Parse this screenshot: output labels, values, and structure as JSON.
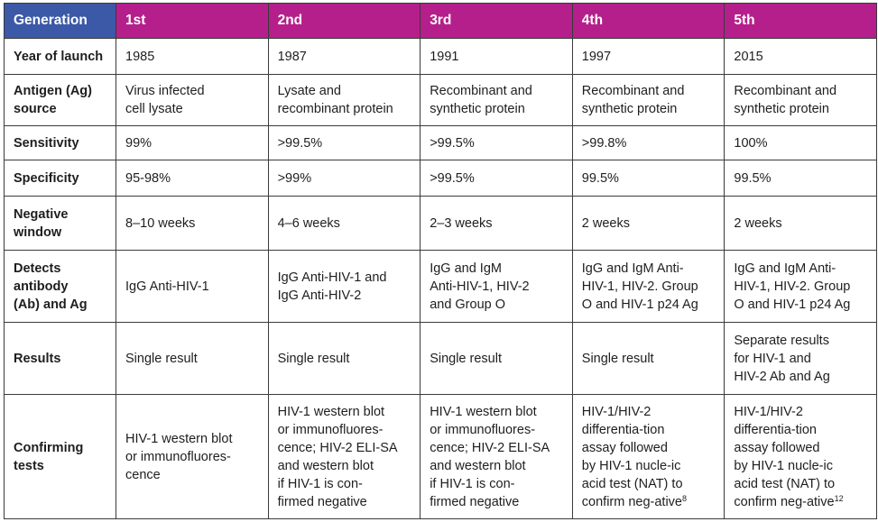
{
  "colors": {
    "header_first": "#3c59a7",
    "header_generation": "#b51f8b",
    "border": "#3a3a3a"
  },
  "header": {
    "label": "Generation",
    "generations": [
      "1st",
      "2nd",
      "3rd",
      "4th",
      "5th"
    ]
  },
  "rows": [
    {
      "label": "Year of launch",
      "cells": [
        "1985",
        "1987",
        "1991",
        "1997",
        "2015"
      ]
    },
    {
      "label": "Antigen (Ag)\nsource",
      "cells": [
        "Virus infected\ncell lysate",
        "Lysate and\nrecombinant protein",
        "Recombinant and\nsynthetic protein",
        "Recombinant and\nsynthetic protein",
        "Recombinant and\nsynthetic protein"
      ]
    },
    {
      "label": "Sensitivity",
      "cells": [
        "99%",
        ">99.5%",
        ">99.5%",
        ">99.8%",
        "100%"
      ]
    },
    {
      "label": "Specificity",
      "cells": [
        "95-98%",
        ">99%",
        ">99.5%",
        "99.5%",
        "99.5%"
      ]
    },
    {
      "label": "Negative\nwindow",
      "cells": [
        "8–10 weeks",
        "4–6 weeks",
        "2–3 weeks",
        "2 weeks",
        "2 weeks"
      ]
    },
    {
      "label": "Detects\nantibody\n(Ab) and Ag",
      "cells": [
        "IgG Anti-HIV-1",
        "IgG Anti-HIV-1 and\nIgG Anti-HIV-2",
        "IgG and IgM\nAnti-HIV-1, HIV-2\nand Group O",
        "IgG and IgM Anti-\nHIV-1, HIV-2. Group\nO and HIV-1 p24 Ag",
        "IgG and IgM Anti-\nHIV-1, HIV-2. Group\nO and HIV-1 p24 Ag"
      ]
    },
    {
      "label": "Results",
      "cells": [
        "Single result",
        "Single result",
        "Single result",
        "Single result",
        "Separate results\nfor HIV-1 and\nHIV-2 Ab and Ag"
      ]
    },
    {
      "label": "Confirming\ntests",
      "cells": [
        "HIV-1 western blot\nor immunofluores-\ncence",
        "HIV-1 western blot\nor immunofluores-\ncence; HIV-2 ELI-SA\nand western blot\nif HIV-1 is con-\nfirmed negative",
        "HIV-1 western blot\nor immunofluores-\ncence; HIV-2 ELI-SA\nand western blot\nif HIV-1 is con-\nfirmed negative",
        "HIV-1/HIV-2\ndifferentia-tion\nassay followed\nby HIV-1 nucle-ic\nacid test (NAT) to\nconfirm neg-ative",
        "HIV-1/HIV-2\ndifferentia-tion\nassay followed\nby HIV-1 nucle-ic\nacid test (NAT) to\nconfirm neg-ative"
      ]
    }
  ],
  "footnotes": {
    "gen4_confirm": "8",
    "gen5_confirm": "12"
  }
}
